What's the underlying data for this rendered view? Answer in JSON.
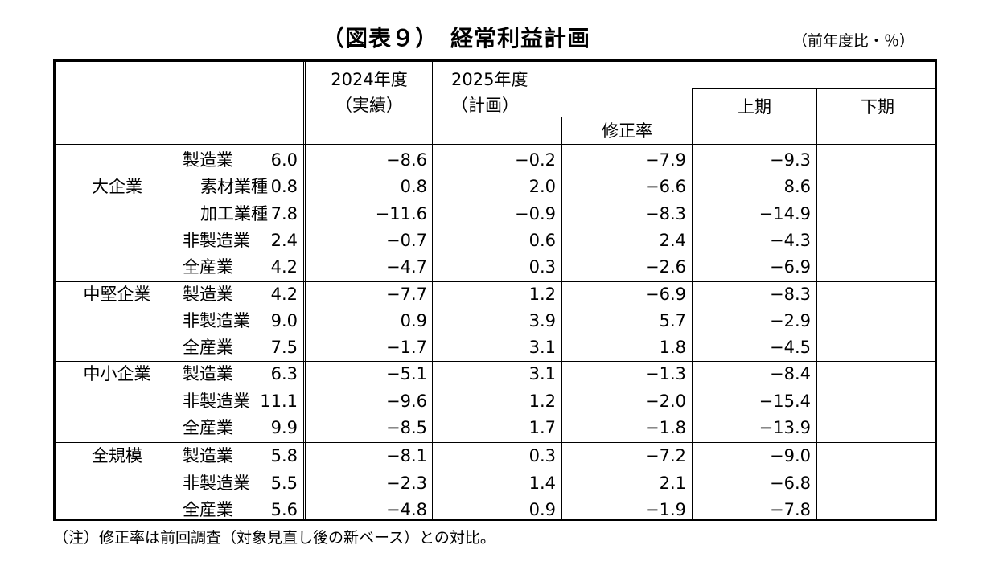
{
  "title": "（図表９）　経常利益計画",
  "unit": "（前年度比・％）",
  "headers": {
    "fy2024": "2024年度",
    "fy2024_sub": "（実績）",
    "fy2025": "2025年度",
    "fy2025_sub": "（計画）",
    "revision": "修正率",
    "first_half": "上期",
    "second_half": "下期"
  },
  "groups": [
    {
      "name": "大企業",
      "rows": [
        {
          "label": "製造業",
          "indent": false,
          "values": [
            "6.0",
            "−8.6",
            "−0.2",
            "−7.9",
            "−9.3"
          ]
        },
        {
          "label": "素材業種",
          "indent": true,
          "values": [
            "0.8",
            "0.8",
            "2.0",
            "−6.6",
            "8.6"
          ]
        },
        {
          "label": "加工業種",
          "indent": true,
          "values": [
            "7.8",
            "−11.6",
            "−0.9",
            "−8.3",
            "−14.9"
          ]
        },
        {
          "label": "非製造業",
          "indent": false,
          "values": [
            "2.4",
            "−0.7",
            "0.6",
            "2.4",
            "−4.3"
          ]
        },
        {
          "label": "全産業",
          "indent": false,
          "values": [
            "4.2",
            "−4.7",
            "0.3",
            "−2.6",
            "−6.9"
          ]
        }
      ]
    },
    {
      "name": "中堅企業",
      "rows": [
        {
          "label": "製造業",
          "indent": false,
          "values": [
            "4.2",
            "−7.7",
            "1.2",
            "−6.9",
            "−8.3"
          ]
        },
        {
          "label": "非製造業",
          "indent": false,
          "values": [
            "9.0",
            "0.9",
            "3.9",
            "5.7",
            "−2.9"
          ]
        },
        {
          "label": "全産業",
          "indent": false,
          "values": [
            "7.5",
            "−1.7",
            "3.1",
            "1.8",
            "−4.5"
          ]
        }
      ]
    },
    {
      "name": "中小企業",
      "rows": [
        {
          "label": "製造業",
          "indent": false,
          "values": [
            "6.3",
            "−5.1",
            "3.1",
            "−1.3",
            "−8.4"
          ]
        },
        {
          "label": "非製造業",
          "indent": false,
          "values": [
            "11.1",
            "−9.6",
            "1.2",
            "−2.0",
            "−15.4"
          ]
        },
        {
          "label": "全産業",
          "indent": false,
          "values": [
            "9.9",
            "−8.5",
            "1.7",
            "−1.8",
            "−13.9"
          ]
        }
      ]
    },
    {
      "name": "全規模",
      "rows": [
        {
          "label": "製造業",
          "indent": false,
          "values": [
            "5.8",
            "−8.1",
            "0.3",
            "−7.2",
            "−9.0"
          ]
        },
        {
          "label": "非製造業",
          "indent": false,
          "values": [
            "5.5",
            "−2.3",
            "1.4",
            "2.1",
            "−6.8"
          ]
        },
        {
          "label": "全産業",
          "indent": false,
          "values": [
            "5.6",
            "−4.8",
            "0.9",
            "−1.9",
            "−7.8"
          ]
        }
      ]
    }
  ],
  "note": "（注）修正率は前回調査（対象見直し後の新ベース）との対比。"
}
